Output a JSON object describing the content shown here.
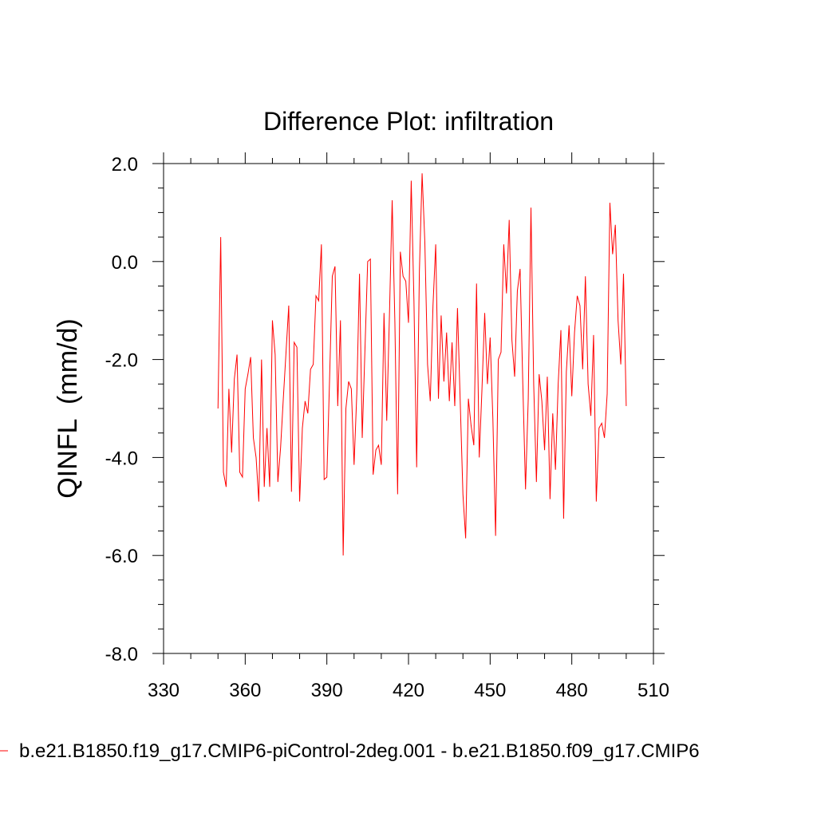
{
  "chart_data": {
    "type": "line",
    "title": "Difference Plot: infiltration",
    "xlabel": "",
    "ylabel": "QINFL  (mm/d)",
    "xlim": [
      330,
      510
    ],
    "ylim": [
      -8.0,
      2.0
    ],
    "xticks": [
      330,
      360,
      390,
      420,
      450,
      480,
      510
    ],
    "yticks": [
      -8.0,
      -6.0,
      -4.0,
      -2.0,
      0.0,
      2.0
    ],
    "x_tick_labels": [
      "330",
      "360",
      "390",
      "420",
      "450",
      "480",
      "510"
    ],
    "y_tick_labels": [
      "-8.0",
      "-6.0",
      "-4.0",
      "-2.0",
      "0.0",
      "2.0"
    ],
    "grid": false,
    "legend_position": "bottom",
    "series": [
      {
        "name": "b.e21.B1850.f19_g17.CMIP6-piControl-2deg.001 - b.e21.B1850.f09_g17.CMIP6",
        "color": "#ff0000",
        "x_start": 350,
        "x_step": 1,
        "values": [
          -3.0,
          0.5,
          -4.3,
          -4.6,
          -2.6,
          -3.9,
          -2.4,
          -1.9,
          -4.3,
          -4.4,
          -2.6,
          -2.3,
          -1.95,
          -3.6,
          -4.0,
          -4.9,
          -2.0,
          -4.6,
          -3.4,
          -4.6,
          -1.2,
          -1.9,
          -4.5,
          -3.8,
          -2.8,
          -1.85,
          -0.9,
          -4.7,
          -1.65,
          -1.75,
          -4.9,
          -3.4,
          -2.85,
          -3.1,
          -2.2,
          -2.1,
          -0.7,
          -0.8,
          0.35,
          -4.45,
          -4.4,
          -2.4,
          -0.3,
          -0.1,
          -2.95,
          -1.2,
          -6.0,
          -3.0,
          -2.45,
          -2.6,
          -4.15,
          -2.7,
          -0.25,
          -3.6,
          -1.8,
          0.0,
          0.05,
          -4.35,
          -3.85,
          -3.75,
          -4.15,
          -1.05,
          -3.25,
          -1.1,
          1.25,
          -1.25,
          -4.75,
          0.2,
          -0.3,
          -0.4,
          -1.25,
          1.65,
          -0.8,
          -4.2,
          -0.2,
          1.8,
          0.4,
          -2.1,
          -2.85,
          -0.9,
          0.35,
          -2.8,
          -1.1,
          -2.45,
          -1.45,
          -2.85,
          -1.65,
          -2.95,
          -0.95,
          -2.85,
          -4.75,
          -5.65,
          -2.8,
          -3.35,
          -3.75,
          -0.45,
          -4.0,
          -2.6,
          -1.05,
          -2.5,
          -1.55,
          -3.2,
          -5.6,
          -2.0,
          -1.85,
          0.35,
          -0.65,
          0.85,
          -1.6,
          -2.35,
          -0.6,
          -0.15,
          -2.5,
          -4.65,
          -2.8,
          1.1,
          -2.5,
          -4.5,
          -2.3,
          -2.85,
          -3.85,
          -2.35,
          -4.85,
          -3.1,
          -4.25,
          -2.5,
          -1.4,
          -5.25,
          -2.25,
          -1.3,
          -2.75,
          -1.45,
          -0.7,
          -0.9,
          -2.2,
          -0.3,
          -2.5,
          -3.15,
          -1.5,
          -4.9,
          -3.4,
          -3.3,
          -3.6,
          -2.7,
          1.2,
          0.15,
          0.75,
          -1.2,
          -2.1,
          -0.25,
          -2.95
        ]
      }
    ]
  }
}
